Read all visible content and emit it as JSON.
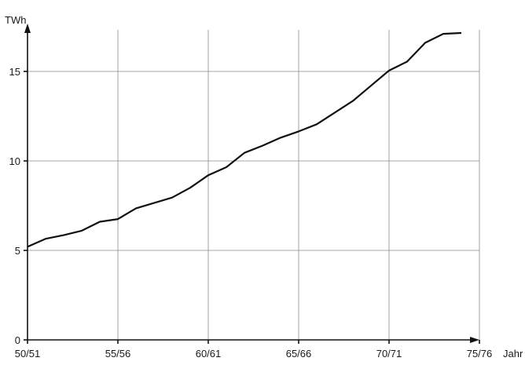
{
  "chart_data": {
    "type": "line",
    "ylabel": "TWh",
    "xlabel": "Jahr",
    "ylim": [
      0,
      17.5
    ],
    "y_ticks": [
      0,
      5,
      10,
      15
    ],
    "x_ticks": [
      "50/51",
      "55/56",
      "60/61",
      "65/66",
      "70/71",
      "75/76"
    ],
    "grid": true,
    "series": [
      {
        "x": [
          "50/51",
          "51/52",
          "52/53",
          "53/54",
          "54/55",
          "55/56",
          "56/57",
          "57/58",
          "58/59",
          "59/60",
          "60/61",
          "61/62",
          "62/63",
          "63/64",
          "64/65",
          "65/66",
          "66/67",
          "67/68",
          "68/69",
          "69/70",
          "70/71",
          "71/72",
          "72/73",
          "73/74",
          "74/75"
        ],
        "values": [
          5.2,
          5.65,
          5.85,
          6.1,
          6.6,
          6.75,
          7.35,
          7.65,
          7.95,
          8.5,
          9.2,
          9.65,
          10.45,
          10.85,
          11.3,
          11.65,
          12.05,
          12.7,
          13.35,
          14.2,
          15.05,
          15.55,
          16.6,
          17.1,
          17.15
        ]
      }
    ]
  }
}
